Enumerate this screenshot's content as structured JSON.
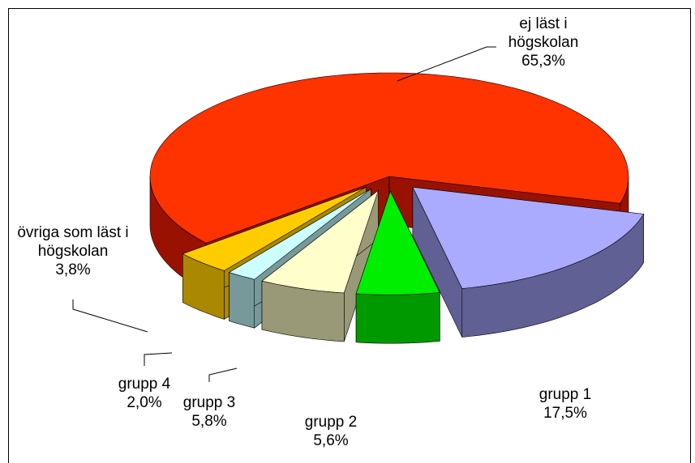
{
  "chart_data": {
    "type": "pie3d",
    "categories": [
      "ej läst i högskolan",
      "grupp 1",
      "grupp 2",
      "grupp 3",
      "grupp 4",
      "övriga som läst i högskolan"
    ],
    "values": [
      65.3,
      17.5,
      5.6,
      5.8,
      2.0,
      3.8
    ],
    "value_labels": [
      "65,3%",
      "17,5%",
      "5,6%",
      "5,8%",
      "2,0%",
      "3,8%"
    ],
    "colors": [
      "#ff3300",
      "#aaaaff",
      "#00ee00",
      "#ffffcc",
      "#ccffff",
      "#ffcc00"
    ],
    "side_colors": [
      "#991100",
      "#606094",
      "#009900",
      "#999977",
      "#779999",
      "#aa8800"
    ]
  }
}
